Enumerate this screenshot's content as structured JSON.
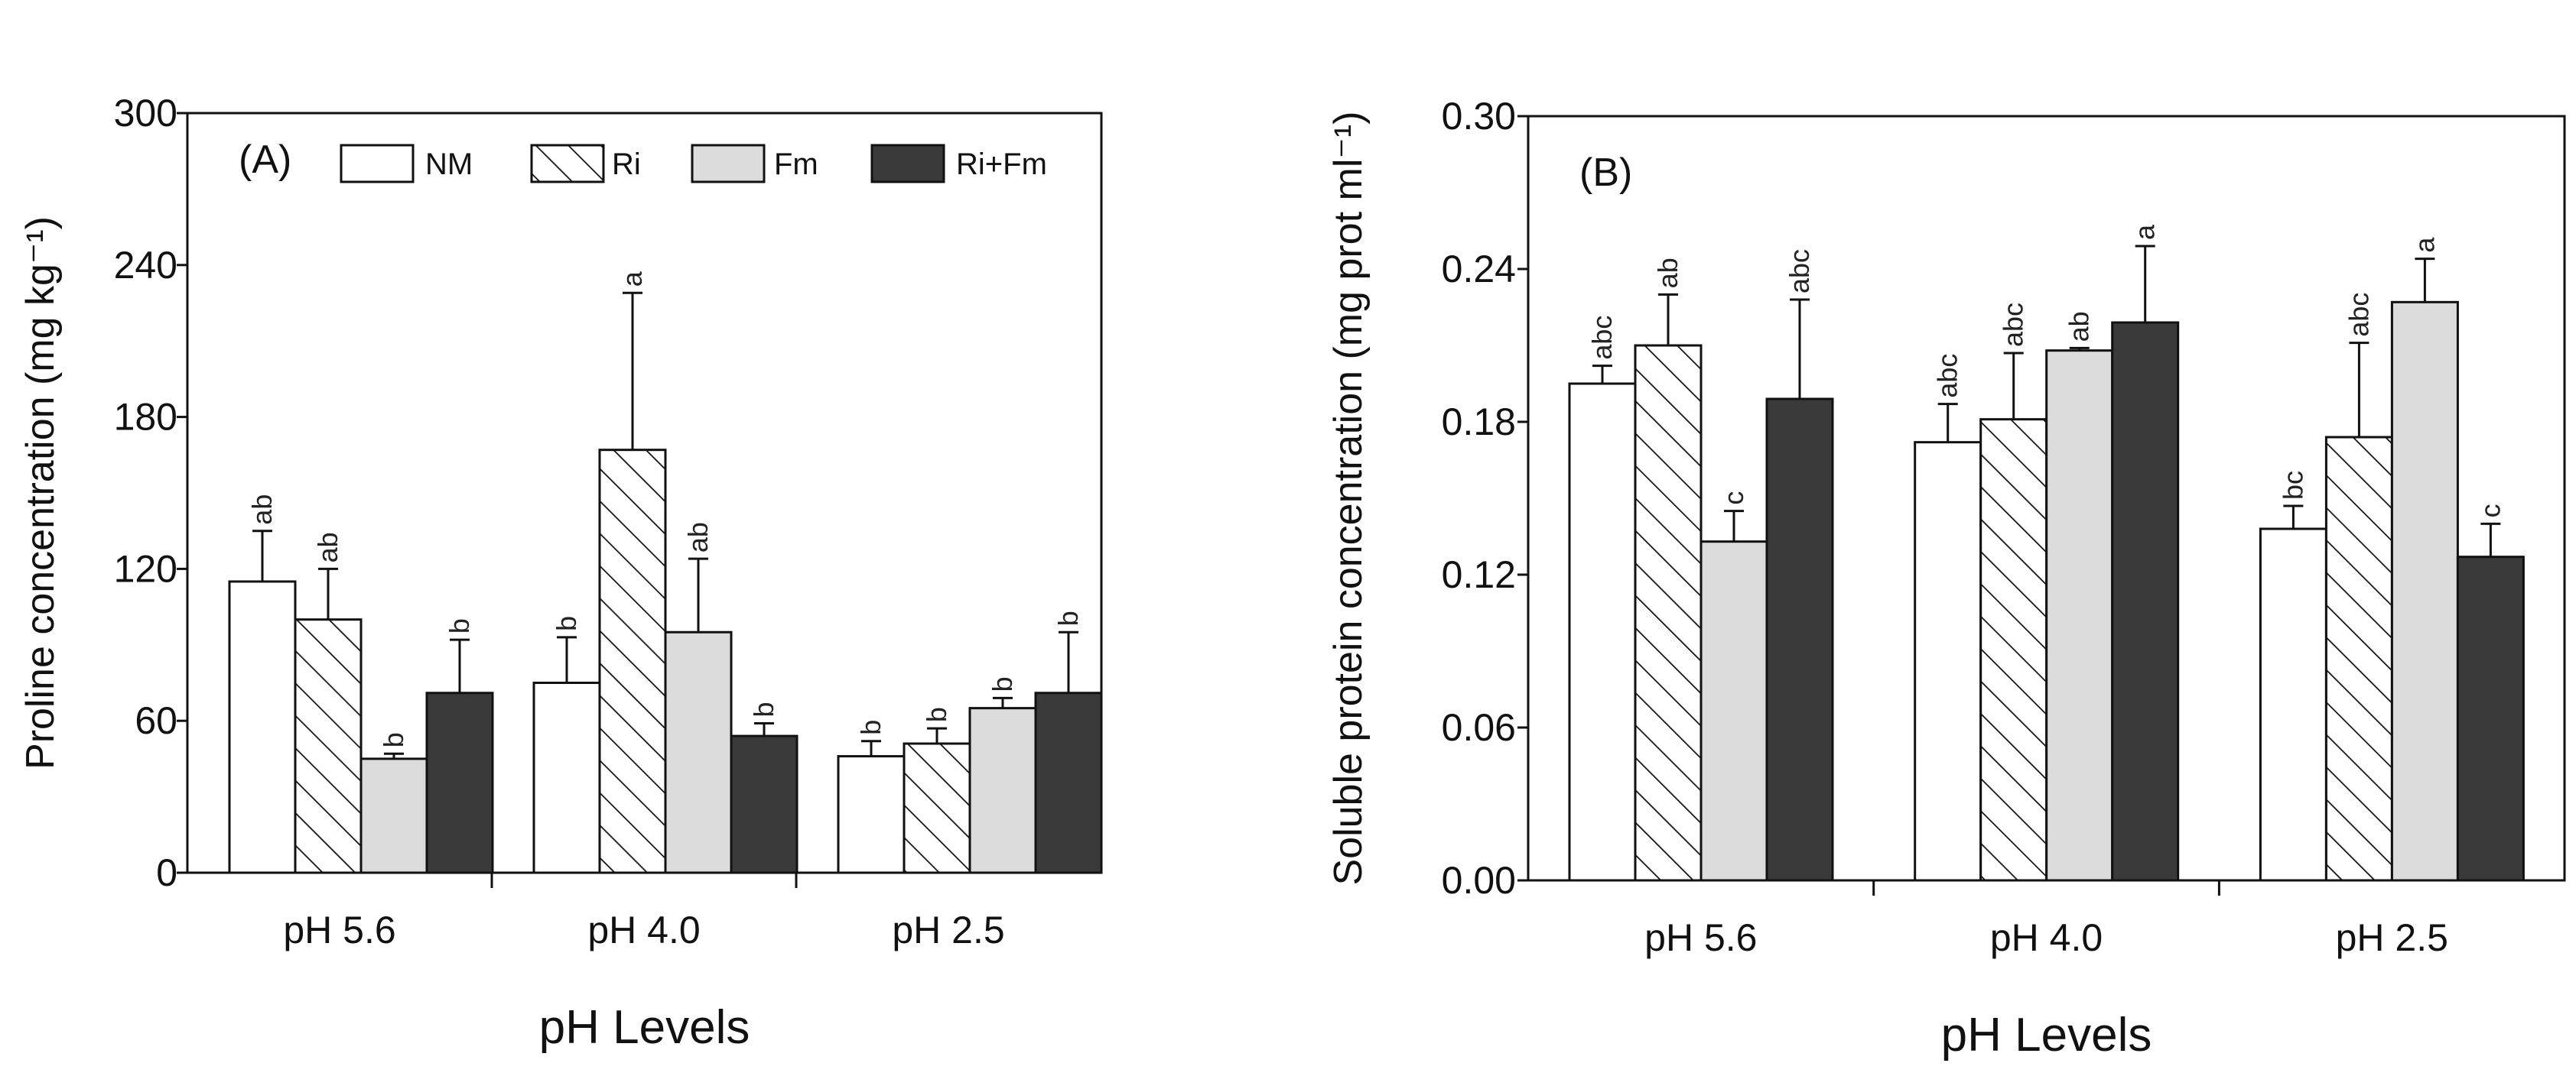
{
  "chart_data": [
    {
      "type": "bar",
      "panel_label": "(A)",
      "categories": [
        "pH 5.6",
        "pH 4.0",
        "pH 2.5"
      ],
      "xlabel": "pH Levels",
      "ylabel": "Proline concentration (mg kg⁻¹)",
      "ylim": [
        0,
        300
      ],
      "yticks": [
        "0",
        "60",
        "120",
        "180",
        "240",
        "300"
      ],
      "legend_position": "top",
      "series": [
        {
          "name": "NM",
          "pattern": "white",
          "values": [
            115,
            75,
            46
          ],
          "errors": [
            20,
            18,
            6
          ],
          "letters": [
            "ab",
            "b",
            "b"
          ]
        },
        {
          "name": "Ri",
          "pattern": "hatched",
          "values": [
            100,
            167,
            51
          ],
          "errors": [
            20,
            62,
            6
          ],
          "letters": [
            "ab",
            "a",
            "b"
          ]
        },
        {
          "name": "Fm",
          "pattern": "grey",
          "values": [
            45,
            95,
            65
          ],
          "errors": [
            2,
            29,
            4
          ],
          "letters": [
            "b",
            "ab",
            "b"
          ]
        },
        {
          "name": "Ri+Fm",
          "pattern": "black",
          "values": [
            71,
            54,
            71
          ],
          "errors": [
            21,
            5,
            24
          ],
          "letters": [
            "b",
            "b",
            "b"
          ]
        }
      ]
    },
    {
      "type": "bar",
      "panel_label": "(B)",
      "categories": [
        "pH 5.6",
        "pH 4.0",
        "pH 2.5"
      ],
      "xlabel": "pH Levels",
      "ylabel": "Soluble protein concentration (mg prot ml⁻¹)",
      "ylim": [
        0,
        0.3
      ],
      "yticks": [
        "0.00",
        "0.06",
        "0.12",
        "0.18",
        "0.24",
        "0.30"
      ],
      "series": [
        {
          "name": "NM",
          "pattern": "white",
          "values": [
            0.195,
            0.172,
            0.138
          ],
          "errors": [
            0.007,
            0.015,
            0.009
          ],
          "letters": [
            "abc",
            "abc",
            "bc"
          ]
        },
        {
          "name": "Ri",
          "pattern": "hatched",
          "values": [
            0.21,
            0.181,
            0.174
          ],
          "errors": [
            0.02,
            0.026,
            0.037
          ],
          "letters": [
            "ab",
            "abc",
            "abc"
          ]
        },
        {
          "name": "Fm",
          "pattern": "grey",
          "values": [
            0.133,
            0.208,
            0.227
          ],
          "errors": [
            0.012,
            0.001,
            0.017
          ],
          "letters": [
            "c",
            "ab",
            "a"
          ]
        },
        {
          "name": "Ri+Fm",
          "pattern": "black",
          "values": [
            0.189,
            0.219,
            0.127
          ],
          "errors": [
            0.039,
            0.03,
            0.013
          ],
          "letters": [
            "abc",
            "a",
            "c"
          ]
        }
      ]
    }
  ],
  "colors": {
    "white_fill": "#ffffff",
    "grey_fill": "#dcdcdc",
    "black_fill": "#3a3a3a",
    "stroke": "#111111"
  }
}
